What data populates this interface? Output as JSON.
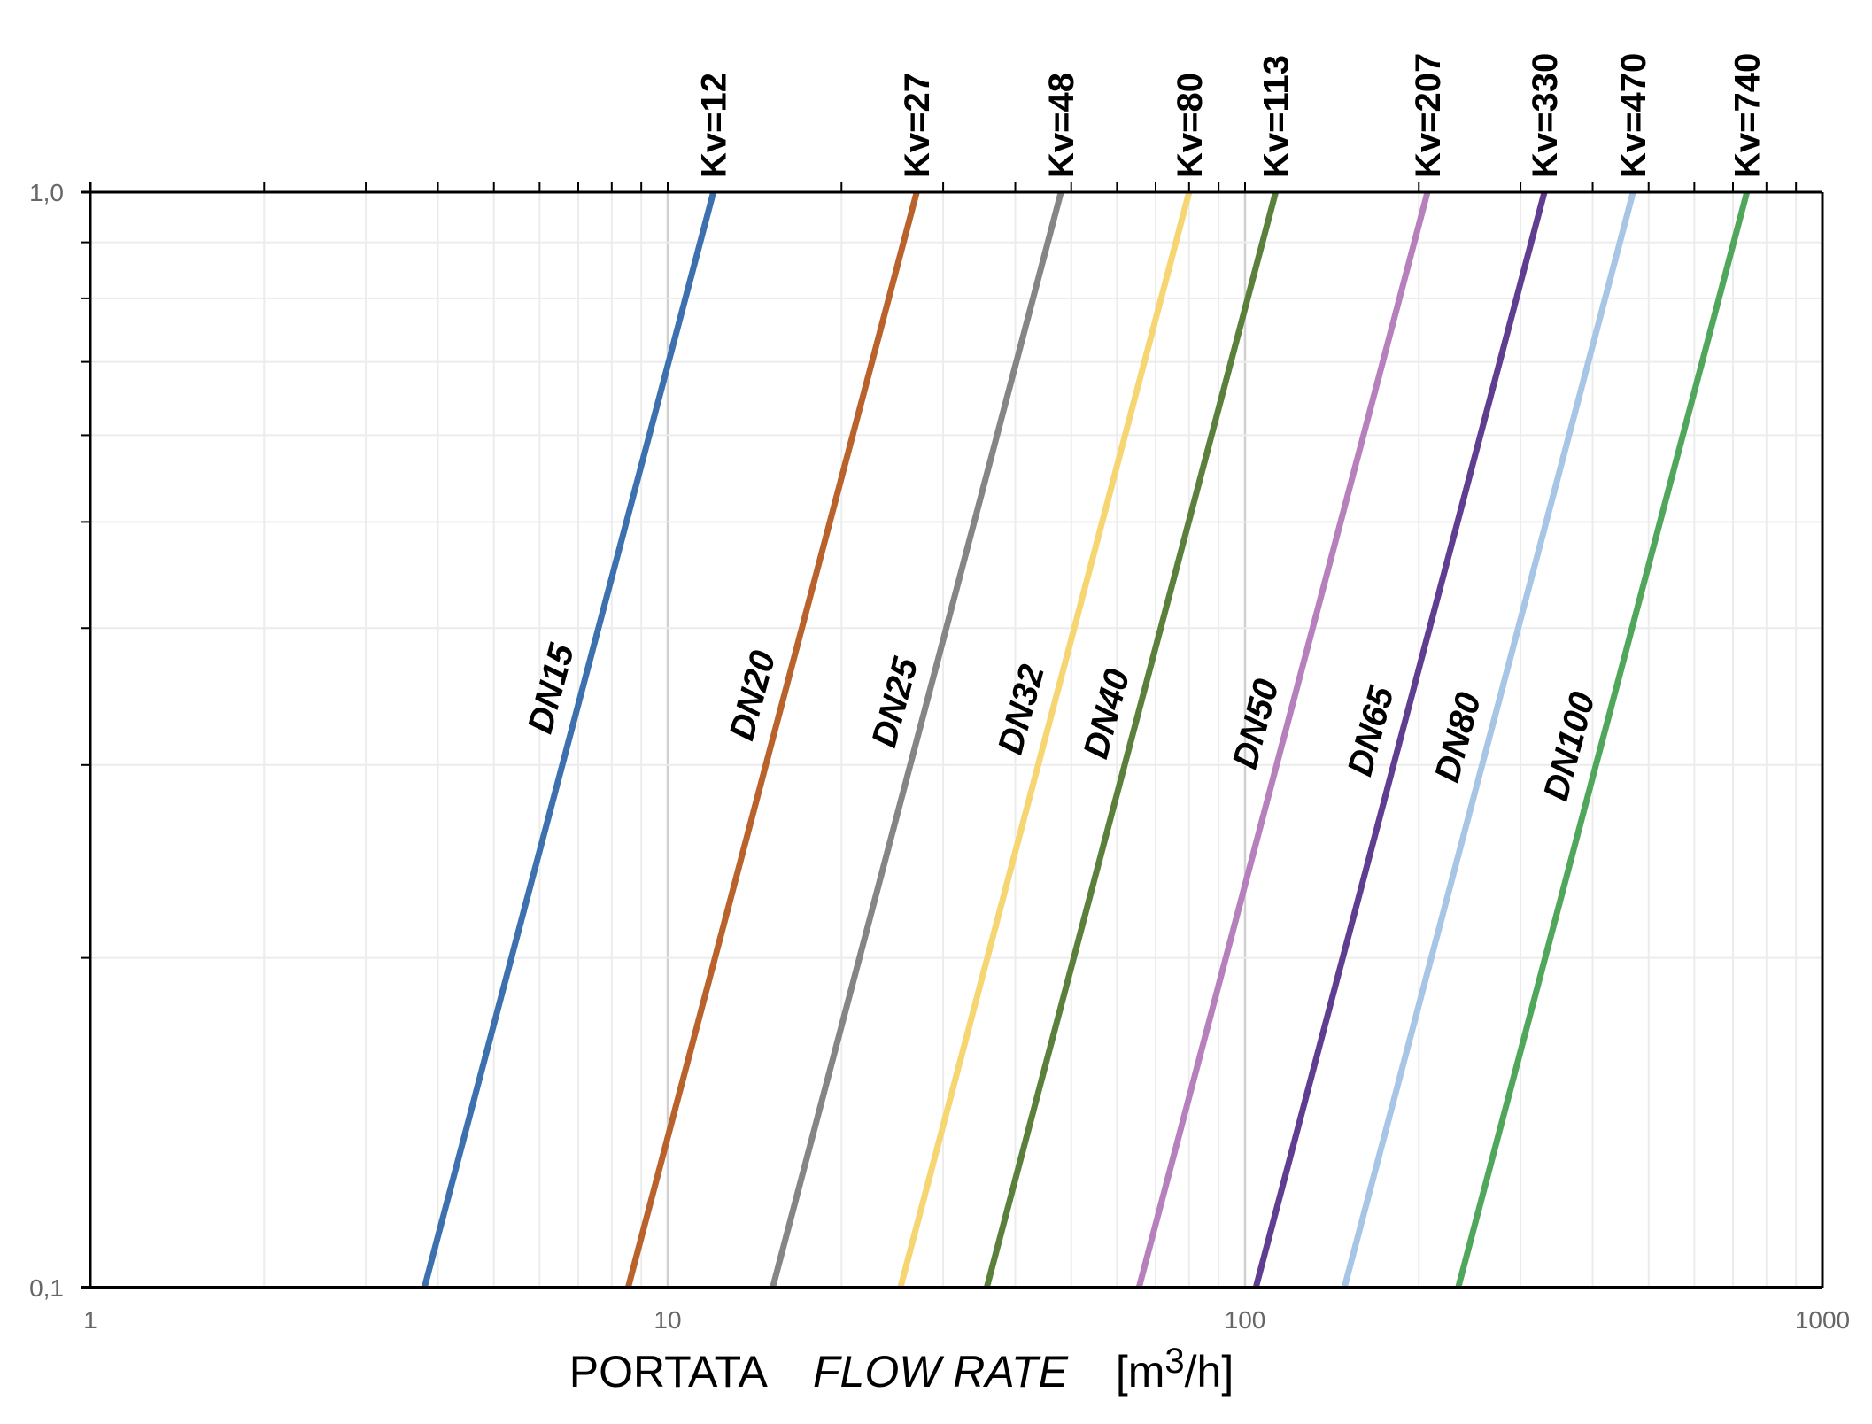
{
  "chart_data": {
    "type": "line",
    "xscale": "log",
    "yscale": "log",
    "xlim": [
      1,
      1000
    ],
    "ylim": [
      0.1,
      1.0
    ],
    "x_tick_labels": [
      "1",
      "10",
      "100",
      "1000"
    ],
    "y_tick_labels": [
      "0,1",
      "1,0"
    ],
    "xlabel": {
      "part1": "PORTATA",
      "part2": "FLOW RATE",
      "unit_open": "[m",
      "unit_sup": "3",
      "unit_close": "/h]"
    },
    "ylabel": "",
    "grid": true,
    "series": [
      {
        "name": "DN15",
        "kv_label": "Kv=12",
        "kv": 12,
        "color": "#3d70ae",
        "points": [
          [
            3.79,
            0.1
          ],
          [
            12,
            1.0
          ]
        ]
      },
      {
        "name": "DN20",
        "kv_label": "Kv=27",
        "kv": 27,
        "color": "#b9622b",
        "points": [
          [
            8.54,
            0.1
          ],
          [
            27,
            1.0
          ]
        ]
      },
      {
        "name": "DN25",
        "kv_label": "Kv=48",
        "kv": 48,
        "color": "#858585",
        "points": [
          [
            15.2,
            0.1
          ],
          [
            48,
            1.0
          ]
        ]
      },
      {
        "name": "DN32",
        "kv_label": "Kv=80",
        "kv": 80,
        "color": "#f6d672",
        "points": [
          [
            25.3,
            0.1
          ],
          [
            80,
            1.0
          ]
        ]
      },
      {
        "name": "DN40",
        "kv_label": "Kv=113",
        "kv": 113,
        "color": "#5b803b",
        "points": [
          [
            35.7,
            0.1
          ],
          [
            113,
            1.0
          ]
        ]
      },
      {
        "name": "DN50",
        "kv_label": "Kv=207",
        "kv": 207,
        "color": "#b680bc",
        "points": [
          [
            65.5,
            0.1
          ],
          [
            207,
            1.0
          ]
        ]
      },
      {
        "name": "DN65",
        "kv_label": "Kv=330",
        "kv": 330,
        "color": "#5f3d90",
        "points": [
          [
            104.4,
            0.1
          ],
          [
            330,
            1.0
          ]
        ]
      },
      {
        "name": "DN80",
        "kv_label": "Kv=470",
        "kv": 470,
        "color": "#a7c5e5",
        "points": [
          [
            148.6,
            0.1
          ],
          [
            470,
            1.0
          ]
        ]
      },
      {
        "name": "DN100",
        "kv_label": "Kv=740",
        "kv": 740,
        "color": "#50a75b",
        "points": [
          [
            234,
            0.1
          ],
          [
            740,
            1.0
          ]
        ]
      }
    ]
  }
}
